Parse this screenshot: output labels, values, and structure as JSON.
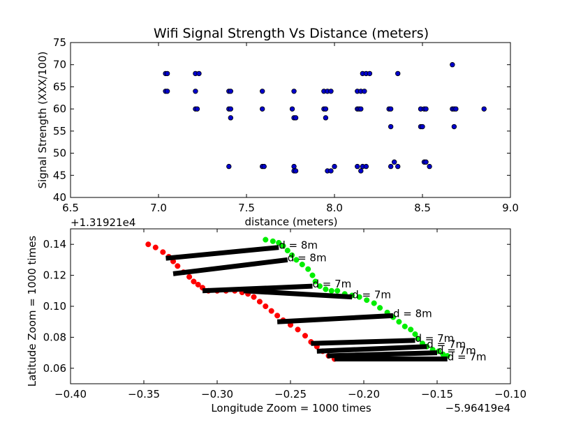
{
  "chart_data": [
    {
      "type": "scatter",
      "title": "Wifi Signal Strength Vs Distance (meters)",
      "xlabel": "distance (meters)",
      "ylabel": "Signal Strength (XXX/100)",
      "xlim": [
        6.5,
        9.0
      ],
      "ylim": [
        40,
        75
      ],
      "xticks": [
        "6.5",
        "7.0",
        "7.5",
        "8.0",
        "8.5",
        "9.0"
      ],
      "yticks": [
        "40",
        "45",
        "50",
        "55",
        "60",
        "65",
        "70",
        "75"
      ],
      "grid": false,
      "colors": {
        "marker": "#0000cc",
        "edge": "#000000"
      },
      "series": [
        {
          "points": [
            [
              7.04,
              68
            ],
            [
              7.05,
              68
            ],
            [
              7.04,
              64
            ],
            [
              7.05,
              64
            ],
            [
              7.21,
              68
            ],
            [
              7.23,
              68
            ],
            [
              7.21,
              64
            ],
            [
              7.21,
              60
            ],
            [
              7.22,
              60
            ],
            [
              7.4,
              64
            ],
            [
              7.41,
              64
            ],
            [
              7.4,
              60
            ],
            [
              7.41,
              60
            ],
            [
              7.41,
              58
            ],
            [
              7.4,
              47
            ],
            [
              7.59,
              64
            ],
            [
              7.59,
              60
            ],
            [
              7.59,
              47
            ],
            [
              7.6,
              47
            ],
            [
              7.77,
              64
            ],
            [
              7.76,
              60
            ],
            [
              7.77,
              58
            ],
            [
              7.78,
              58
            ],
            [
              7.77,
              47
            ],
            [
              7.77,
              46
            ],
            [
              7.78,
              46
            ],
            [
              7.94,
              64
            ],
            [
              7.96,
              64
            ],
            [
              7.98,
              64
            ],
            [
              7.94,
              60
            ],
            [
              7.95,
              60
            ],
            [
              7.95,
              58
            ],
            [
              7.96,
              46
            ],
            [
              7.98,
              46
            ],
            [
              8.0,
              47
            ],
            [
              8.13,
              64
            ],
            [
              8.15,
              64
            ],
            [
              8.17,
              64
            ],
            [
              8.16,
              68
            ],
            [
              8.18,
              68
            ],
            [
              8.2,
              68
            ],
            [
              8.13,
              60
            ],
            [
              8.14,
              60
            ],
            [
              8.15,
              60
            ],
            [
              8.13,
              47
            ],
            [
              8.15,
              46
            ],
            [
              8.16,
              47
            ],
            [
              8.18,
              47
            ],
            [
              8.31,
              60
            ],
            [
              8.32,
              60
            ],
            [
              8.32,
              56
            ],
            [
              8.32,
              47
            ],
            [
              8.34,
              48
            ],
            [
              8.36,
              47
            ],
            [
              8.36,
              68
            ],
            [
              8.49,
              60
            ],
            [
              8.51,
              60
            ],
            [
              8.52,
              60
            ],
            [
              8.49,
              56
            ],
            [
              8.5,
              56
            ],
            [
              8.51,
              48
            ],
            [
              8.52,
              48
            ],
            [
              8.54,
              47
            ],
            [
              8.67,
              70
            ],
            [
              8.67,
              60
            ],
            [
              8.68,
              60
            ],
            [
              8.69,
              60
            ],
            [
              8.68,
              56
            ],
            [
              8.85,
              60
            ]
          ]
        }
      ]
    },
    {
      "type": "scatter",
      "title": "",
      "xlabel": "Longitude Zoom = 1000 times",
      "ylabel": "Latitude Zoom = 1000 times",
      "x_offset_label": "−5.96419e4",
      "y_offset_label": "+1.31921e4",
      "xlim": [
        -0.4,
        -0.1
      ],
      "ylim": [
        0.05,
        0.15
      ],
      "xticks": [
        "−0.40",
        "−0.35",
        "−0.30",
        "−0.25",
        "−0.20",
        "−0.15",
        "−0.10"
      ],
      "yticks": [
        "0.06",
        "0.08",
        "0.10",
        "0.12",
        "0.14"
      ],
      "grid": false,
      "colors": {
        "red": "#ff0000",
        "green": "#00ee00",
        "line": "#000000"
      },
      "series": [
        {
          "color": "red",
          "points": [
            [
              -0.347,
              0.14
            ],
            [
              -0.342,
              0.138
            ],
            [
              -0.337,
              0.135
            ],
            [
              -0.333,
              0.132
            ],
            [
              -0.33,
              0.129
            ],
            [
              -0.327,
              0.126
            ],
            [
              -0.323,
              0.122
            ],
            [
              -0.319,
              0.119
            ],
            [
              -0.316,
              0.116
            ],
            [
              -0.313,
              0.114
            ],
            [
              -0.31,
              0.112
            ],
            [
              -0.306,
              0.11
            ],
            [
              -0.3,
              0.11
            ],
            [
              -0.294,
              0.11
            ],
            [
              -0.288,
              0.11
            ],
            [
              -0.283,
              0.109
            ],
            [
              -0.279,
              0.108
            ],
            [
              -0.275,
              0.106
            ],
            [
              -0.271,
              0.103
            ],
            [
              -0.267,
              0.1
            ],
            [
              -0.263,
              0.097
            ],
            [
              -0.259,
              0.094
            ],
            [
              -0.255,
              0.091
            ],
            [
              -0.25,
              0.088
            ],
            [
              -0.245,
              0.085
            ],
            [
              -0.24,
              0.081
            ],
            [
              -0.236,
              0.077
            ],
            [
              -0.232,
              0.074
            ],
            [
              -0.228,
              0.071
            ],
            [
              -0.224,
              0.068
            ],
            [
              -0.22,
              0.066
            ]
          ]
        },
        {
          "color": "green",
          "points": [
            [
              -0.267,
              0.143
            ],
            [
              -0.262,
              0.142
            ],
            [
              -0.258,
              0.141
            ],
            [
              -0.255,
              0.139
            ],
            [
              -0.252,
              0.136
            ],
            [
              -0.249,
              0.133
            ],
            [
              -0.246,
              0.13
            ],
            [
              -0.242,
              0.127
            ],
            [
              -0.238,
              0.124
            ],
            [
              -0.235,
              0.12
            ],
            [
              -0.233,
              0.116
            ],
            [
              -0.23,
              0.113
            ],
            [
              -0.226,
              0.111
            ],
            [
              -0.222,
              0.11
            ],
            [
              -0.218,
              0.11
            ],
            [
              -0.213,
              0.108
            ],
            [
              -0.208,
              0.107
            ],
            [
              -0.203,
              0.106
            ],
            [
              -0.198,
              0.104
            ],
            [
              -0.193,
              0.102
            ],
            [
              -0.189,
              0.099
            ],
            [
              -0.184,
              0.096
            ],
            [
              -0.18,
              0.093
            ],
            [
              -0.176,
              0.09
            ],
            [
              -0.172,
              0.087
            ],
            [
              -0.168,
              0.085
            ],
            [
              -0.165,
              0.082
            ],
            [
              -0.163,
              0.079
            ],
            [
              -0.16,
              0.076
            ],
            [
              -0.157,
              0.074
            ],
            [
              -0.153,
              0.072
            ],
            [
              -0.149,
              0.071
            ],
            [
              -0.146,
              0.069
            ],
            [
              -0.143,
              0.068
            ]
          ]
        }
      ],
      "segments": [
        {
          "from": [
            -0.335,
            0.131
          ],
          "to": [
            -0.258,
            0.138
          ],
          "label": "d = 8m"
        },
        {
          "from": [
            -0.33,
            0.121
          ],
          "to": [
            -0.252,
            0.13
          ],
          "label": "d = 8m"
        },
        {
          "from": [
            -0.31,
            0.11
          ],
          "to": [
            -0.235,
            0.113
          ],
          "label": "d = 7m"
        },
        {
          "from": [
            -0.282,
            0.11
          ],
          "to": [
            -0.208,
            0.106
          ],
          "label": "d = 7m"
        },
        {
          "from": [
            -0.259,
            0.09
          ],
          "to": [
            -0.18,
            0.094
          ],
          "label": "d = 8m"
        },
        {
          "from": [
            -0.236,
            0.076
          ],
          "to": [
            -0.165,
            0.078
          ],
          "label": "d = 7m"
        },
        {
          "from": [
            -0.232,
            0.071
          ],
          "to": [
            -0.157,
            0.074
          ],
          "label": "d = 7m"
        },
        {
          "from": [
            -0.225,
            0.068
          ],
          "to": [
            -0.15,
            0.07
          ],
          "label": "d = 7m"
        },
        {
          "from": [
            -0.22,
            0.066
          ],
          "to": [
            -0.143,
            0.066
          ],
          "label": "d = 7m"
        }
      ]
    }
  ]
}
